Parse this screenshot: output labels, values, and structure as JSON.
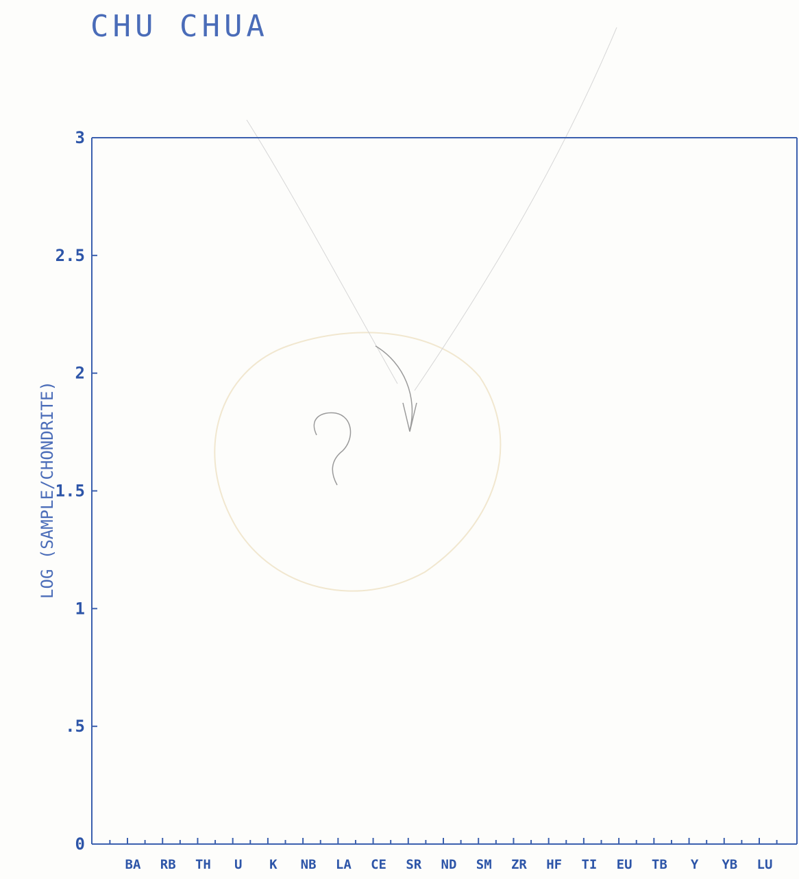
{
  "chart_data": {
    "type": "line",
    "title": "CHU CHUA",
    "ylabel": "LOG (SAMPLE/CHONDRITE)",
    "xlabel": "",
    "categories": [
      "BA",
      "RB",
      "TH",
      "U",
      "K",
      "NB",
      "LA",
      "CE",
      "SR",
      "ND",
      "SM",
      "ZR",
      "HF",
      "TI",
      "EU",
      "TB",
      "Y",
      "YB",
      "LU"
    ],
    "yticks": [
      "0",
      ".5",
      "1",
      "1.5",
      "2",
      "2.5",
      "3"
    ],
    "ytick_values": [
      0,
      0.5,
      1,
      1.5,
      2,
      2.5,
      3
    ],
    "ylim": [
      0,
      3
    ],
    "grid": false,
    "series": [],
    "annotations": {
      "handwritten_mark": "?"
    },
    "colors": {
      "ink": "#3a5fae",
      "text": "#2d55a8",
      "paper": "#fdfdfb"
    }
  }
}
